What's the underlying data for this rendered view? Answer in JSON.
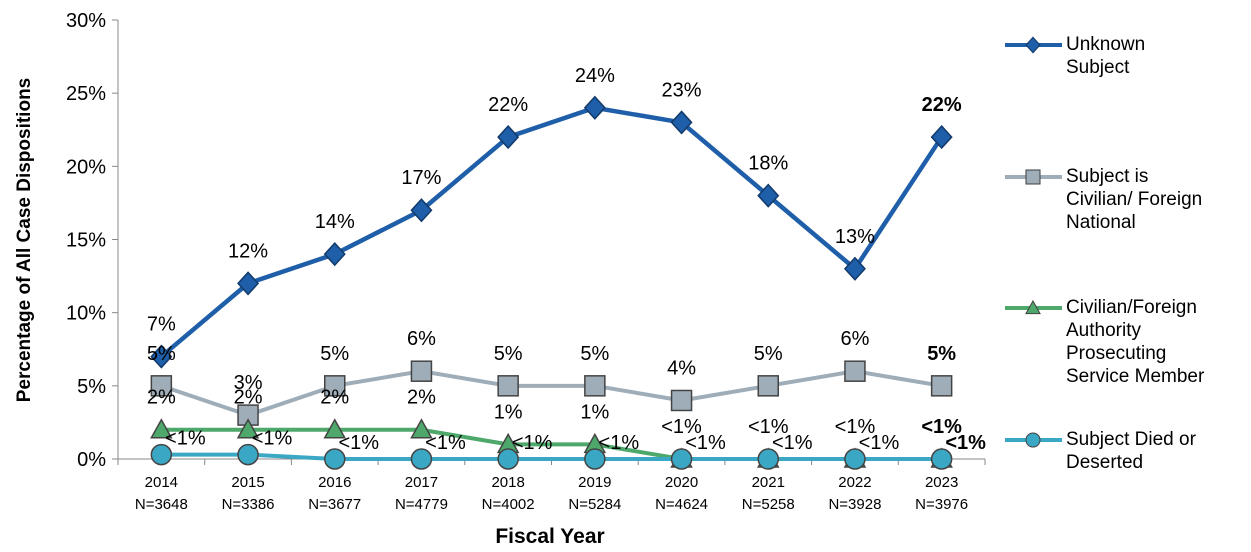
{
  "chart_data": {
    "type": "line",
    "y_axis_label": "Percentage of All Case Dispositions",
    "x_axis_label": "Fiscal Year",
    "categories": [
      "2014",
      "2015",
      "2016",
      "2017",
      "2018",
      "2019",
      "2020",
      "2021",
      "2022",
      "2023"
    ],
    "sample_sizes": [
      "N=3648",
      "N=3386",
      "N=3677",
      "N=4779",
      "N=4002",
      "N=5284",
      "N=4624",
      "N=5258",
      "N=3928",
      "N=3976"
    ],
    "ylim": [
      0,
      30
    ],
    "yticks": [
      {
        "value": 0,
        "label": "0%"
      },
      {
        "value": 5,
        "label": "5%"
      },
      {
        "value": 10,
        "label": "10%"
      },
      {
        "value": 15,
        "label": "15%"
      },
      {
        "value": 20,
        "label": "20%"
      },
      {
        "value": 25,
        "label": "25%"
      },
      {
        "value": 30,
        "label": "30%"
      }
    ],
    "bold_last_labels": true,
    "legend": "right",
    "series": [
      {
        "name": "Unknown\nSubject",
        "color": "#1f5ea8",
        "marker": "diamond",
        "values": [
          7,
          12,
          14,
          17,
          22,
          24,
          23,
          18,
          13,
          22
        ],
        "value_labels": [
          "7%",
          "12%",
          "14%",
          "17%",
          "22%",
          "24%",
          "23%",
          "18%",
          "13%",
          "22%"
        ]
      },
      {
        "name": "Subject is\nCivilian/ Foreign\nNational",
        "color": "#9eadb8",
        "marker": "square",
        "values": [
          5,
          3,
          5,
          6,
          5,
          5,
          4,
          5,
          6,
          5
        ],
        "value_labels": [
          "5%",
          "3%",
          "5%",
          "6%",
          "5%",
          "5%",
          "4%",
          "5%",
          "6%",
          "5%"
        ]
      },
      {
        "name": "Civilian/Foreign\nAuthority\nProsecuting\nService Member",
        "color": "#4ea86b",
        "marker": "triangle",
        "values": [
          2,
          2,
          2,
          2,
          1,
          1,
          0,
          0,
          0,
          0
        ],
        "value_labels": [
          "2%",
          "2%",
          "2%",
          "2%",
          "1%",
          "1%",
          "<1%",
          "<1%",
          "<1%",
          "<1%"
        ]
      },
      {
        "name": "Subject Died or\nDeserted",
        "color": "#3aa8c4",
        "marker": "circle",
        "values": [
          0.3,
          0.3,
          0,
          0,
          0,
          0,
          0,
          0,
          0,
          0
        ],
        "value_labels": [
          "<1%",
          "<1%",
          "<1%",
          "<1%",
          "<1%",
          "<1%",
          "<1%",
          "<1%",
          "<1%",
          "<1%"
        ]
      }
    ]
  }
}
